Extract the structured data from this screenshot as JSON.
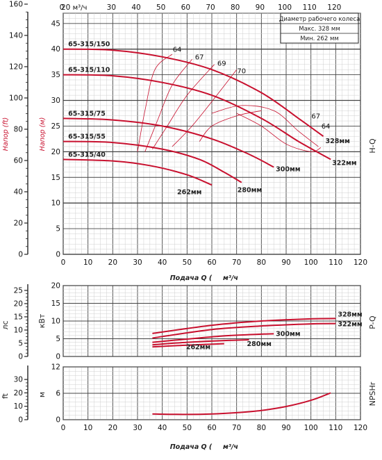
{
  "chart_data": [
    {
      "id": "hq",
      "type": "line",
      "side_title": "H-Q",
      "xlabel": "Подача Q (",
      "xlabel_unit": "м³/ч",
      "top_unit": "м³/ч",
      "top_ticks": [
        "0",
        "20",
        "30",
        "40",
        "50",
        "60",
        "70",
        "80",
        "90",
        "100",
        "110",
        "120"
      ],
      "x_ticks": [
        "0",
        "10",
        "20",
        "30",
        "40",
        "50",
        "60",
        "70",
        "80",
        "90",
        "100",
        "110",
        "120"
      ],
      "xlim": [
        0,
        120
      ],
      "ylim": [
        0,
        47
      ],
      "y_ticks": [
        "0",
        "5",
        "10",
        "15",
        "20",
        "25",
        "30",
        "35",
        "40",
        "45"
      ],
      "ylabel": "Напор (м)",
      "y2_ticks": [
        "0",
        "20",
        "40",
        "60",
        "80",
        "100",
        "120",
        "140",
        "160"
      ],
      "y2label": "Напор (ft)",
      "legend": {
        "title": "Диаметр рабочего колеса",
        "max": "Макс.  328 мм",
        "min": "Мин.  262 мм"
      },
      "series": [
        {
          "name": "328мм",
          "x": [
            0,
            20,
            40,
            60,
            80,
            95,
            105
          ],
          "y": [
            40,
            39.8,
            38.5,
            36,
            31.5,
            26.5,
            23
          ]
        },
        {
          "name": "322мм",
          "x": [
            0,
            20,
            40,
            60,
            80,
            95,
            108
          ],
          "y": [
            35,
            34.8,
            33.5,
            31,
            26.5,
            22,
            18.5
          ]
        },
        {
          "name": "300мм",
          "x": [
            0,
            20,
            40,
            60,
            75,
            85
          ],
          "y": [
            26.5,
            26.2,
            25,
            22.5,
            19.5,
            17
          ]
        },
        {
          "name": "280мм",
          "x": [
            0,
            20,
            40,
            55,
            65,
            72
          ],
          "y": [
            22,
            21.8,
            20.5,
            18.5,
            16,
            14
          ]
        },
        {
          "name": "262мм",
          "x": [
            0,
            20,
            35,
            50,
            60
          ],
          "y": [
            18.5,
            18.2,
            17.3,
            15.5,
            13.5
          ]
        }
      ],
      "curve_labels": [
        "65-315/150",
        "65-315/110",
        "65-315/75",
        "65-315/55",
        "65-315/40"
      ],
      "efficiency_labels": [
        "64",
        "67",
        "69",
        "70",
        "67",
        "64"
      ]
    },
    {
      "id": "pq",
      "type": "line",
      "side_title": "P-Q",
      "xlim": [
        0,
        120
      ],
      "ylim": [
        0,
        20
      ],
      "y_ticks": [
        "0",
        "5",
        "10",
        "15",
        "20"
      ],
      "ylabel": "кВт",
      "y2_ticks": [
        "0",
        "5",
        "10",
        "15",
        "20",
        "25"
      ],
      "y2label": "лс",
      "series": [
        {
          "name": "328мм",
          "x": [
            36,
            60,
            80,
            100,
            110
          ],
          "y": [
            6.5,
            8.8,
            10,
            10.6,
            10.7
          ]
        },
        {
          "name": "322мм",
          "x": [
            36,
            60,
            80,
            100,
            110
          ],
          "y": [
            5.2,
            7.6,
            8.6,
            9.2,
            9.3
          ]
        },
        {
          "name": "300мм",
          "x": [
            36,
            50,
            65,
            80,
            85
          ],
          "y": [
            4,
            4.9,
            5.8,
            6.3,
            6.4
          ]
        },
        {
          "name": "280мм",
          "x": [
            36,
            50,
            65,
            75
          ],
          "y": [
            3.3,
            4,
            4.5,
            4.7
          ]
        },
        {
          "name": "262мм",
          "x": [
            36,
            50,
            65
          ],
          "y": [
            2.7,
            3.2,
            3.6
          ]
        }
      ]
    },
    {
      "id": "npsh",
      "type": "line",
      "side_title": "NPSHr",
      "xlabel": "Подача Q (",
      "xlabel_unit": "м³/ч",
      "x_ticks": [
        "0",
        "10",
        "20",
        "30",
        "40",
        "50",
        "60",
        "70",
        "80",
        "90",
        "100",
        "110",
        "120"
      ],
      "xlim": [
        0,
        120
      ],
      "ylim": [
        0,
        12
      ],
      "y_ticks": [
        "0",
        "6",
        "12"
      ],
      "ylabel": "м",
      "y2_ticks": [
        "0",
        "10",
        "20",
        "30"
      ],
      "y2label": "ft",
      "series": [
        {
          "name": "",
          "x": [
            36,
            50,
            60,
            70,
            80,
            90,
            100,
            108
          ],
          "y": [
            1.3,
            1.2,
            1.3,
            1.6,
            2.1,
            3,
            4.4,
            6.1
          ]
        }
      ]
    }
  ]
}
